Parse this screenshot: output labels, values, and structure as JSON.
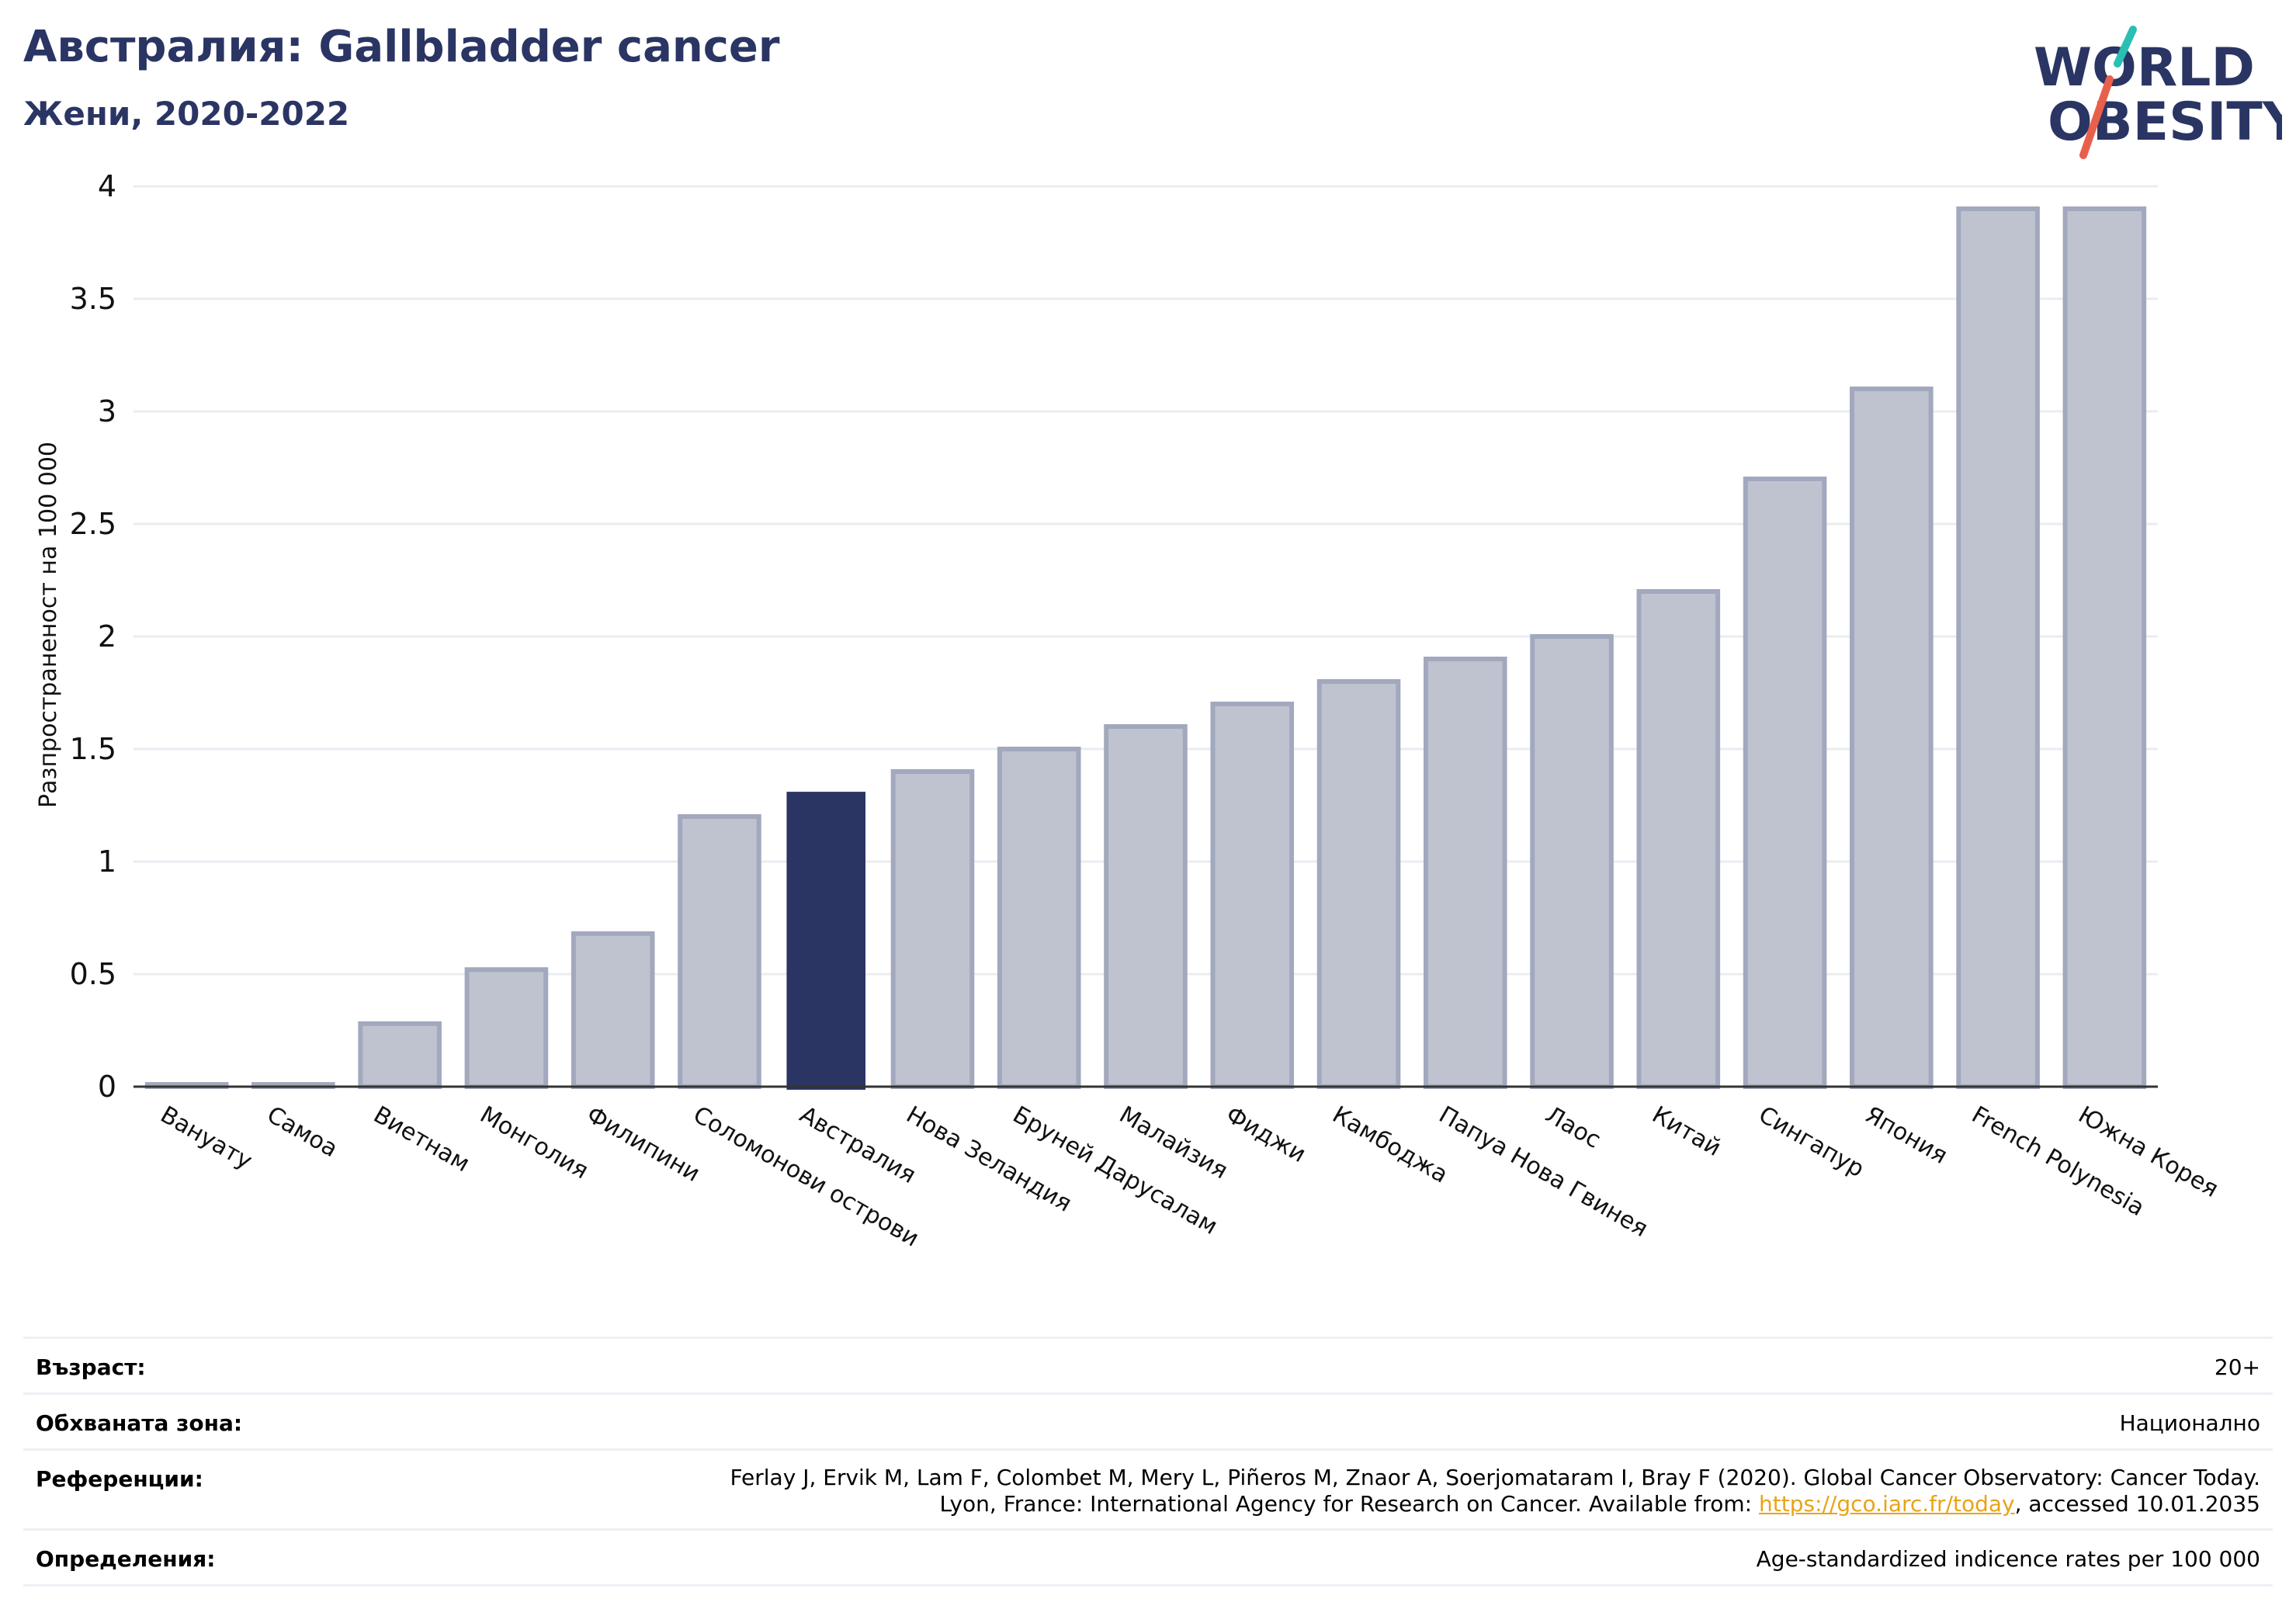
{
  "header": {
    "title": "Австралия: Gallbladder cancer",
    "subtitle": "Жени, 2020-2022"
  },
  "logo": {
    "line1": "WORLD",
    "line2": "OBESITY",
    "colors": {
      "text": "#2a3564",
      "teal": "#2bbfb3",
      "coral": "#e8604c"
    }
  },
  "colors": {
    "bar": "#bfc3d0",
    "bar_border": "#a2a8bd",
    "highlight": "#2a3564",
    "grid": "#eaecf2",
    "axis": "#333333"
  },
  "chart_data": {
    "type": "bar",
    "title": "",
    "xlabel": "",
    "ylabel": "Разпространеност  на 100 000",
    "ylim": [
      0,
      4
    ],
    "yticks": [
      0,
      0.5,
      1,
      1.5,
      2,
      2.5,
      3,
      3.5,
      4
    ],
    "ytick_labels": [
      "0",
      "0.5",
      "1",
      "1.5",
      "2",
      "2.5",
      "3",
      "3.5",
      "4"
    ],
    "grid": true,
    "highlight_category": "Австралия",
    "categories": [
      "Вануату",
      "Самоа",
      "Виетнам",
      "Монголия",
      "Филипини",
      "Соломонови острови",
      "Австралия",
      "Нова Зеландия",
      "Бруней Дарусалам",
      "Малайзия",
      "Фиджи",
      "Камбоджа",
      "Папуа Нова Гвинея",
      "Лаос",
      "Китай",
      "Сингапур",
      "Япония",
      "French Polynesia",
      "Южна Корея"
    ],
    "values": [
      0.01,
      0.01,
      0.28,
      0.52,
      0.68,
      1.2,
      1.31,
      1.4,
      1.5,
      1.6,
      1.7,
      1.8,
      1.9,
      2.0,
      2.2,
      2.7,
      3.1,
      3.9,
      3.9
    ]
  },
  "info": {
    "age_label": "Възраст:",
    "age_value": "20+",
    "coverage_label": "Обхваната зона:",
    "coverage_value": "Национално",
    "references_label": "Референции:",
    "references_line1": "Ferlay J, Ervik M, Lam F, Colombet M, Mery L, Piñeros M, Znaor A, Soerjomataram I, Bray F (2020). Global Cancer Observatory: Cancer Today.",
    "references_line2_pre": "Lyon, France: International Agency for Research on Cancer. Available from: ",
    "references_link": "https://gco.iarc.fr/today",
    "references_line2_post": ", accessed 10.01.2035",
    "definitions_label": "Определения:",
    "definitions_value": "Age-standardized indicence rates per 100 000"
  }
}
